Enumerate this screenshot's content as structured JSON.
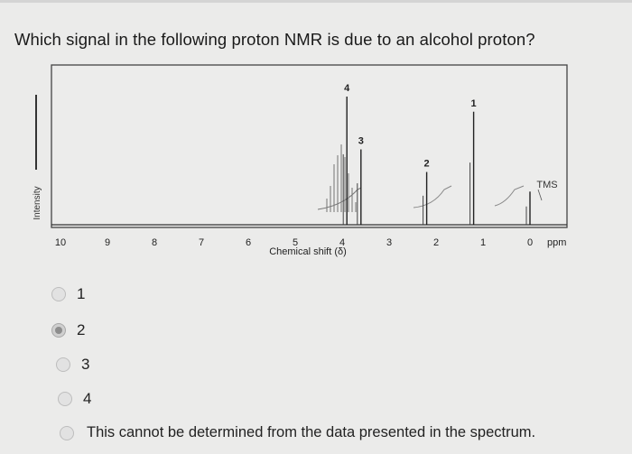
{
  "question": "Which signal in the following proton NMR is due to an alcohol proton?",
  "spectrum": {
    "y_label": "Intensity",
    "x_label": "Chemical shift (δ)",
    "x_ticks": [
      "10",
      "9",
      "8",
      "7",
      "6",
      "5",
      "4",
      "3",
      "2",
      "1",
      "0"
    ],
    "x_unit": "ppm",
    "tms_label": "TMS",
    "signals": [
      {
        "label": "4",
        "shift": 3.9,
        "height": 0.85
      },
      {
        "label": "3",
        "shift": 3.6,
        "height": 0.5
      },
      {
        "label": "2",
        "shift": 2.2,
        "height": 0.35
      },
      {
        "label": "1",
        "shift": 1.2,
        "height": 0.75
      },
      {
        "label": "",
        "shift": 0.0,
        "height": 0.22
      }
    ]
  },
  "options": [
    {
      "label": "1",
      "selected": false
    },
    {
      "label": "2",
      "selected": true
    },
    {
      "label": "3",
      "selected": false
    },
    {
      "label": "4",
      "selected": false
    },
    {
      "label": "This cannot be determined from the data presented in the spectrum.",
      "selected": false
    }
  ],
  "colors": {
    "background": "#ebebea",
    "text": "#1e1e1e",
    "frame": "#4a4a4a"
  }
}
